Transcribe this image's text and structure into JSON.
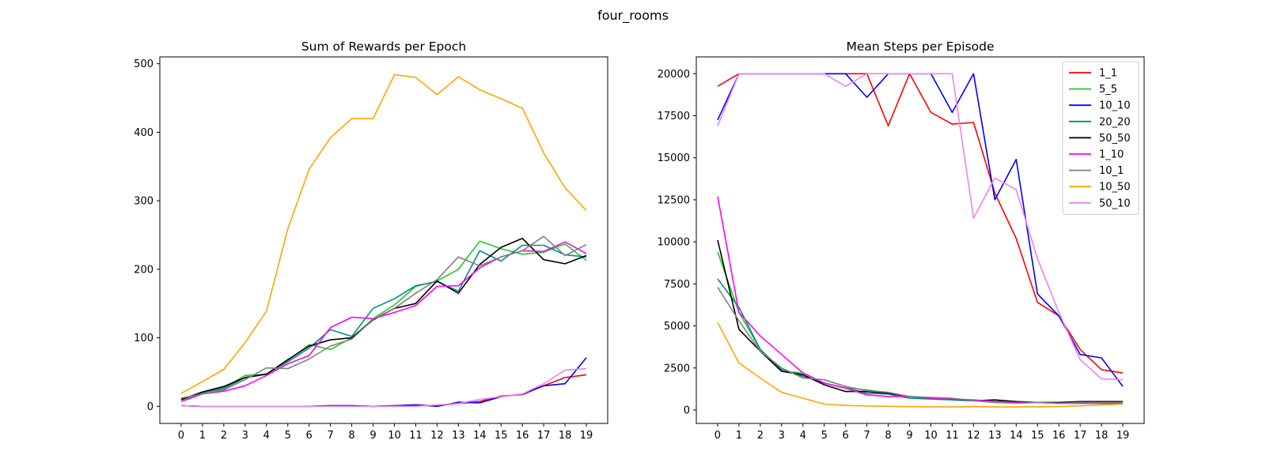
{
  "suptitle": "four_rooms",
  "chart_data": [
    {
      "type": "line",
      "title": "Sum of Rewards per Epoch",
      "xlabel": "",
      "ylabel": "",
      "x": [
        0,
        1,
        2,
        3,
        4,
        5,
        6,
        7,
        8,
        9,
        10,
        11,
        12,
        13,
        14,
        15,
        16,
        17,
        18,
        19
      ],
      "xlim": [
        -1,
        20
      ],
      "ylim": [
        -25,
        510
      ],
      "yticks": [
        0,
        100,
        200,
        300,
        400,
        500
      ],
      "grid": false,
      "series": [
        {
          "name": "1_1",
          "color": "#ff0000",
          "values": [
            1,
            0,
            0,
            0,
            0,
            0,
            0,
            1,
            1,
            0,
            1,
            2,
            1,
            4,
            7,
            15,
            17,
            30,
            42,
            46
          ]
        },
        {
          "name": "5_5",
          "color": "#22cc22",
          "values": [
            9,
            20,
            27,
            45,
            47,
            67,
            90,
            83,
            100,
            128,
            148,
            175,
            183,
            200,
            241,
            230,
            222,
            225,
            237,
            213
          ]
        },
        {
          "name": "10_10",
          "color": "#0000ff",
          "values": [
            1,
            0,
            0,
            0,
            0,
            0,
            0,
            1,
            1,
            0,
            1,
            2,
            0,
            6,
            5,
            14,
            18,
            30,
            33,
            71
          ]
        },
        {
          "name": "20_20",
          "color": "#008b8b",
          "values": [
            10,
            20,
            26,
            42,
            47,
            65,
            85,
            112,
            102,
            143,
            157,
            176,
            182,
            168,
            227,
            212,
            235,
            235,
            221,
            218
          ]
        },
        {
          "name": "50_50",
          "color": "#000000",
          "values": [
            10,
            21,
            29,
            42,
            47,
            68,
            88,
            97,
            100,
            126,
            143,
            150,
            183,
            165,
            207,
            232,
            245,
            214,
            208,
            220
          ]
        },
        {
          "name": "1_10",
          "color": "#ff00ff",
          "values": [
            7,
            18,
            22,
            30,
            45,
            62,
            74,
            115,
            130,
            128,
            137,
            147,
            175,
            176,
            202,
            218,
            227,
            226,
            240,
            223
          ]
        },
        {
          "name": "10_1",
          "color": "#808080",
          "values": [
            12,
            18,
            24,
            39,
            56,
            55,
            69,
            88,
            98,
            127,
            143,
            165,
            185,
            218,
            205,
            218,
            227,
            248,
            220,
            236
          ]
        },
        {
          "name": "10_50",
          "color": "#ffa500",
          "values": [
            19,
            36,
            54,
            93,
            139,
            259,
            346,
            392,
            420,
            420,
            484,
            480,
            455,
            481,
            462,
            449,
            435,
            370,
            319,
            286
          ]
        },
        {
          "name": "50_10",
          "color": "#ee82ee",
          "values": [
            1,
            0,
            0,
            0,
            0,
            0,
            0,
            0,
            0,
            0,
            0,
            0,
            2,
            4,
            10,
            14,
            18,
            33,
            53,
            55
          ]
        }
      ]
    },
    {
      "type": "line",
      "title": "Mean Steps per Episode",
      "xlabel": "",
      "ylabel": "",
      "x": [
        0,
        1,
        2,
        3,
        4,
        5,
        6,
        7,
        8,
        9,
        10,
        11,
        12,
        13,
        14,
        15,
        16,
        17,
        18,
        19
      ],
      "xlim": [
        -1,
        20
      ],
      "ylim": [
        -800,
        21000
      ],
      "yticks": [
        0,
        2500,
        5000,
        7500,
        10000,
        12500,
        15000,
        17500,
        20000
      ],
      "ytick_labels": [
        "0",
        "2500",
        "5000",
        "7500",
        "10000",
        "12500",
        "15000",
        "17500",
        "20000"
      ],
      "grid": false,
      "legend": "top-right",
      "series": [
        {
          "name": "1_1",
          "color": "#ff0000",
          "values": [
            19250,
            20000,
            20000,
            20000,
            20000,
            20000,
            20000,
            20000,
            16900,
            20000,
            17700,
            17000,
            17100,
            12900,
            10200,
            6400,
            5600,
            3600,
            2400,
            2200
          ]
        },
        {
          "name": "5_5",
          "color": "#22cc22",
          "values": [
            9400,
            5800,
            3600,
            2300,
            2200,
            1600,
            1300,
            1200,
            1000,
            800,
            700,
            650,
            550,
            500,
            450,
            450,
            400,
            450,
            400,
            400
          ]
        },
        {
          "name": "10_10",
          "color": "#0000ff",
          "values": [
            17250,
            20000,
            20000,
            20000,
            20000,
            20000,
            20000,
            18600,
            20000,
            20000,
            20000,
            17700,
            20000,
            12500,
            14900,
            6900,
            5600,
            3300,
            3100,
            1400
          ]
        },
        {
          "name": "20_20",
          "color": "#008b8b",
          "values": [
            7800,
            6100,
            3600,
            2400,
            2000,
            1600,
            1300,
            1000,
            950,
            700,
            650,
            600,
            550,
            500,
            450,
            450,
            400,
            400,
            400,
            400
          ]
        },
        {
          "name": "50_50",
          "color": "#000000",
          "values": [
            10100,
            4800,
            3500,
            2300,
            2100,
            1500,
            1100,
            1100,
            1000,
            800,
            700,
            650,
            550,
            600,
            500,
            450,
            450,
            500,
            500,
            500
          ]
        },
        {
          "name": "1_10",
          "color": "#ff00ff",
          "values": [
            12700,
            5800,
            4400,
            3300,
            2200,
            1600,
            1300,
            900,
            800,
            800,
            700,
            650,
            600,
            500,
            450,
            450,
            400,
            400,
            400,
            400
          ]
        },
        {
          "name": "10_1",
          "color": "#808080",
          "values": [
            7300,
            5300,
            3500,
            2500,
            1900,
            1800,
            1400,
            1150,
            1050,
            800,
            750,
            700,
            550,
            450,
            400,
            450,
            400,
            450,
            450,
            450
          ]
        },
        {
          "name": "10_50",
          "color": "#ffa500",
          "values": [
            5200,
            2800,
            1900,
            1050,
            700,
            350,
            270,
            240,
            220,
            200,
            190,
            180,
            200,
            180,
            180,
            190,
            200,
            250,
            300,
            350
          ]
        },
        {
          "name": "50_10",
          "color": "#ee82ee",
          "values": [
            16900,
            20000,
            20000,
            20000,
            20000,
            20000,
            19250,
            20000,
            20000,
            20000,
            20000,
            20000,
            11400,
            13800,
            13100,
            9000,
            5800,
            3000,
            1850,
            1800
          ]
        }
      ]
    }
  ]
}
